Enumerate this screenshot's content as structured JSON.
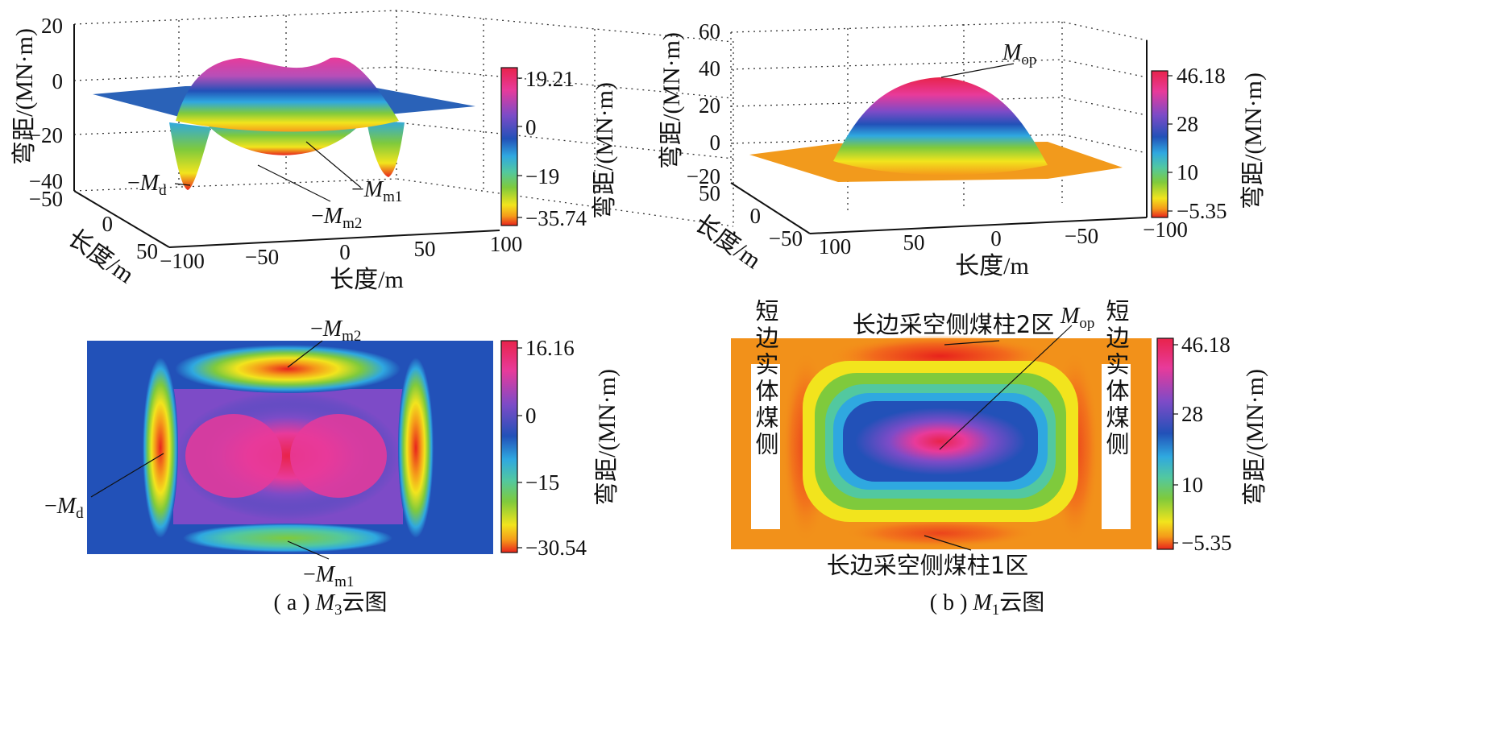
{
  "panels": [
    {
      "id": "a",
      "caption_prefix": "( a ) ",
      "caption_symbol": "M",
      "caption_subscript": "3",
      "caption_suffix": "云图",
      "surface": {
        "zlabel": "弯距/(MN·m)",
        "xlabel": "长度/m",
        "ylabel": "长度/m",
        "z_ticks": [
          "20",
          "0",
          "−20",
          "−40"
        ],
        "x_ticks": [
          "−100",
          "−50",
          "0",
          "50",
          "100"
        ],
        "y_ticks": [
          "−50",
          "0",
          "50"
        ],
        "colorbar_label": "弯距/(MN·m)",
        "colorbar_ticks": [
          "19.21",
          "0",
          "−19",
          "−35.74"
        ],
        "annotations": [
          {
            "prefix": "−",
            "symbol": "M",
            "sub": "d"
          },
          {
            "prefix": "−",
            "symbol": "M",
            "sub": "m1"
          },
          {
            "prefix": "−",
            "symbol": "M",
            "sub": "m2"
          }
        ]
      },
      "contour": {
        "colorbar_label": "弯距/(MN·m)",
        "colorbar_ticks": [
          "16.16",
          "0",
          "−15",
          "−30.54"
        ],
        "annotations": [
          {
            "prefix": "−",
            "symbol": "M",
            "sub": "m2"
          },
          {
            "prefix": "−",
            "symbol": "M",
            "sub": "d"
          },
          {
            "prefix": "−",
            "symbol": "M",
            "sub": "m1"
          }
        ]
      }
    },
    {
      "id": "b",
      "caption_prefix": "( b ) ",
      "caption_symbol": "M",
      "caption_subscript": "1",
      "caption_suffix": "云图",
      "surface": {
        "zlabel": "弯距/(MN·m)",
        "xlabel": "长度/m",
        "ylabel": "长度/m",
        "z_ticks": [
          "60",
          "40",
          "20",
          "0",
          "−20"
        ],
        "x_ticks": [
          "100",
          "50",
          "0",
          "−50",
          "−100"
        ],
        "y_ticks": [
          "50",
          "0",
          "−50"
        ],
        "colorbar_label": "弯距/(MN·m)",
        "colorbar_ticks": [
          "46.18",
          "28",
          "10",
          "−5.35"
        ],
        "annotations": [
          {
            "prefix": "",
            "symbol": "M",
            "sub": "op"
          }
        ]
      },
      "contour": {
        "colorbar_label": "弯距/(MN·m)",
        "colorbar_ticks": [
          "46.18",
          "28",
          "10",
          "−5.35"
        ],
        "top_label": "长边采空侧煤柱2区",
        "bottom_label": "长边采空侧煤柱1区",
        "left_label": "短边实体煤侧",
        "right_label": "短边实体煤侧",
        "annotations": [
          {
            "prefix": "",
            "symbol": "M",
            "sub": "op"
          }
        ]
      }
    }
  ],
  "chart_data": [
    {
      "type": "surface",
      "panel": "a-top",
      "zlabel": "弯距/(MN·m)",
      "xlabel": "长度/m",
      "ylabel": "长度/m",
      "xlim": [
        -100,
        100
      ],
      "ylim": [
        -50,
        50
      ],
      "zlim": [
        -40,
        20
      ],
      "color_range": [
        -35.74,
        19.21
      ]
    },
    {
      "type": "heatmap",
      "panel": "a-bottom",
      "color_range": [
        -30.54,
        16.16
      ]
    },
    {
      "type": "surface",
      "panel": "b-top",
      "zlabel": "弯距/(MN·m)",
      "xlabel": "长度/m",
      "ylabel": "长度/m",
      "xlim": [
        -100,
        100
      ],
      "ylim": [
        -50,
        50
      ],
      "zlim": [
        -20,
        60
      ],
      "color_range": [
        -5.35,
        46.18
      ]
    },
    {
      "type": "heatmap",
      "panel": "b-bottom",
      "color_range": [
        -5.35,
        46.18
      ]
    }
  ]
}
